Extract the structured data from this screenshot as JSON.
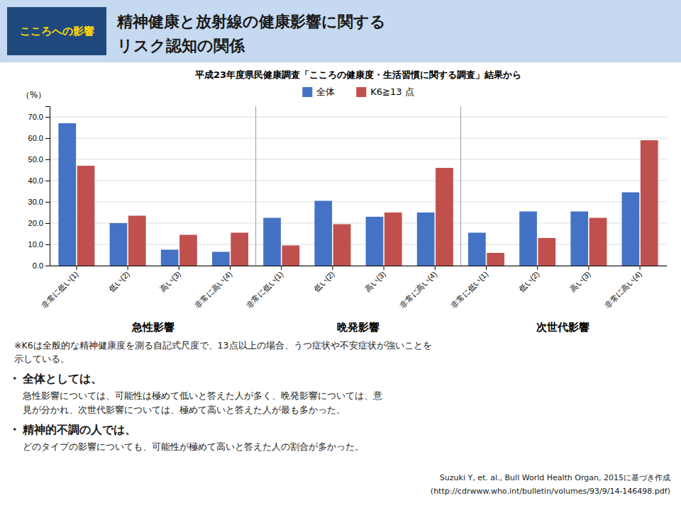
{
  "chart_data": {
    "type": "bar",
    "title": [
      "精神健康と放射線の健康影響に関する",
      "リスク認知の関係"
    ],
    "subtitle": "平成23年度県民健康調査「こころの健康度・生活習慣に関する調査」結果から",
    "ylabel": "（%）",
    "categories": [
      "非常に低い(1)",
      "低い(2)",
      "高い(3)",
      "非常に高い(4)",
      "非常に低い(1)",
      "低い(2)",
      "高い(3)",
      "非常に高い(4)",
      "非常に低い(1)",
      "低い(2)",
      "高い(3)",
      "非常に高い(4)"
    ],
    "groups": [
      "急性影響",
      "晩発影響",
      "次世代影響"
    ],
    "series": [
      {
        "name": "全体",
        "color": "#4472C4",
        "values": [
          67.0,
          20.0,
          7.5,
          6.5,
          22.5,
          30.5,
          23.0,
          25.0,
          15.5,
          25.5,
          25.5,
          34.5
        ]
      },
      {
        "name": "K6≧13 点",
        "color": "#C0504D",
        "values": [
          47.0,
          23.5,
          14.5,
          15.5,
          9.5,
          19.5,
          25.0,
          46.0,
          6.0,
          13.0,
          22.5,
          59.0
        ]
      }
    ],
    "ylim": [
      0,
      75
    ],
    "yticks": [
      {
        "value": 0,
        "label": "0.0"
      },
      {
        "value": 10,
        "label": "10.0"
      },
      {
        "value": 20,
        "label": "20.0"
      },
      {
        "value": 30,
        "label": "30.0"
      },
      {
        "value": 40,
        "label": "40.0"
      },
      {
        "value": 50,
        "label": "50.0"
      },
      {
        "value": 60,
        "label": "60.0"
      },
      {
        "value": 70,
        "label": "70.0"
      }
    ],
    "grid": true,
    "legend": "top",
    "annotations": [
      "こころへの影響",
      "※K6は全般的な精神健康度を測る自記式尺度で、13点以上の場合、うつ症状や不安症状が強いことを",
      "示している。",
      "・",
      "全体としては、",
      "急性影響については、可能性は極めて低いと答えた人が多く、晩発影響については、意",
      "見が分かれ、次世代影響については、極めて高いと答えた人が最も多かった。",
      "・",
      "精神的不調の人では、",
      "どのタイプの影響についても、可能性が極めて高いと答えた人の割合が多かった。",
      "Suzuki Y,  et. al., Bull World Health Organ, 2015に基づき作成",
      "(http://cdrwww.who.int/bulletin/volumes/93/9/14-146498.pdf)"
    ]
  }
}
